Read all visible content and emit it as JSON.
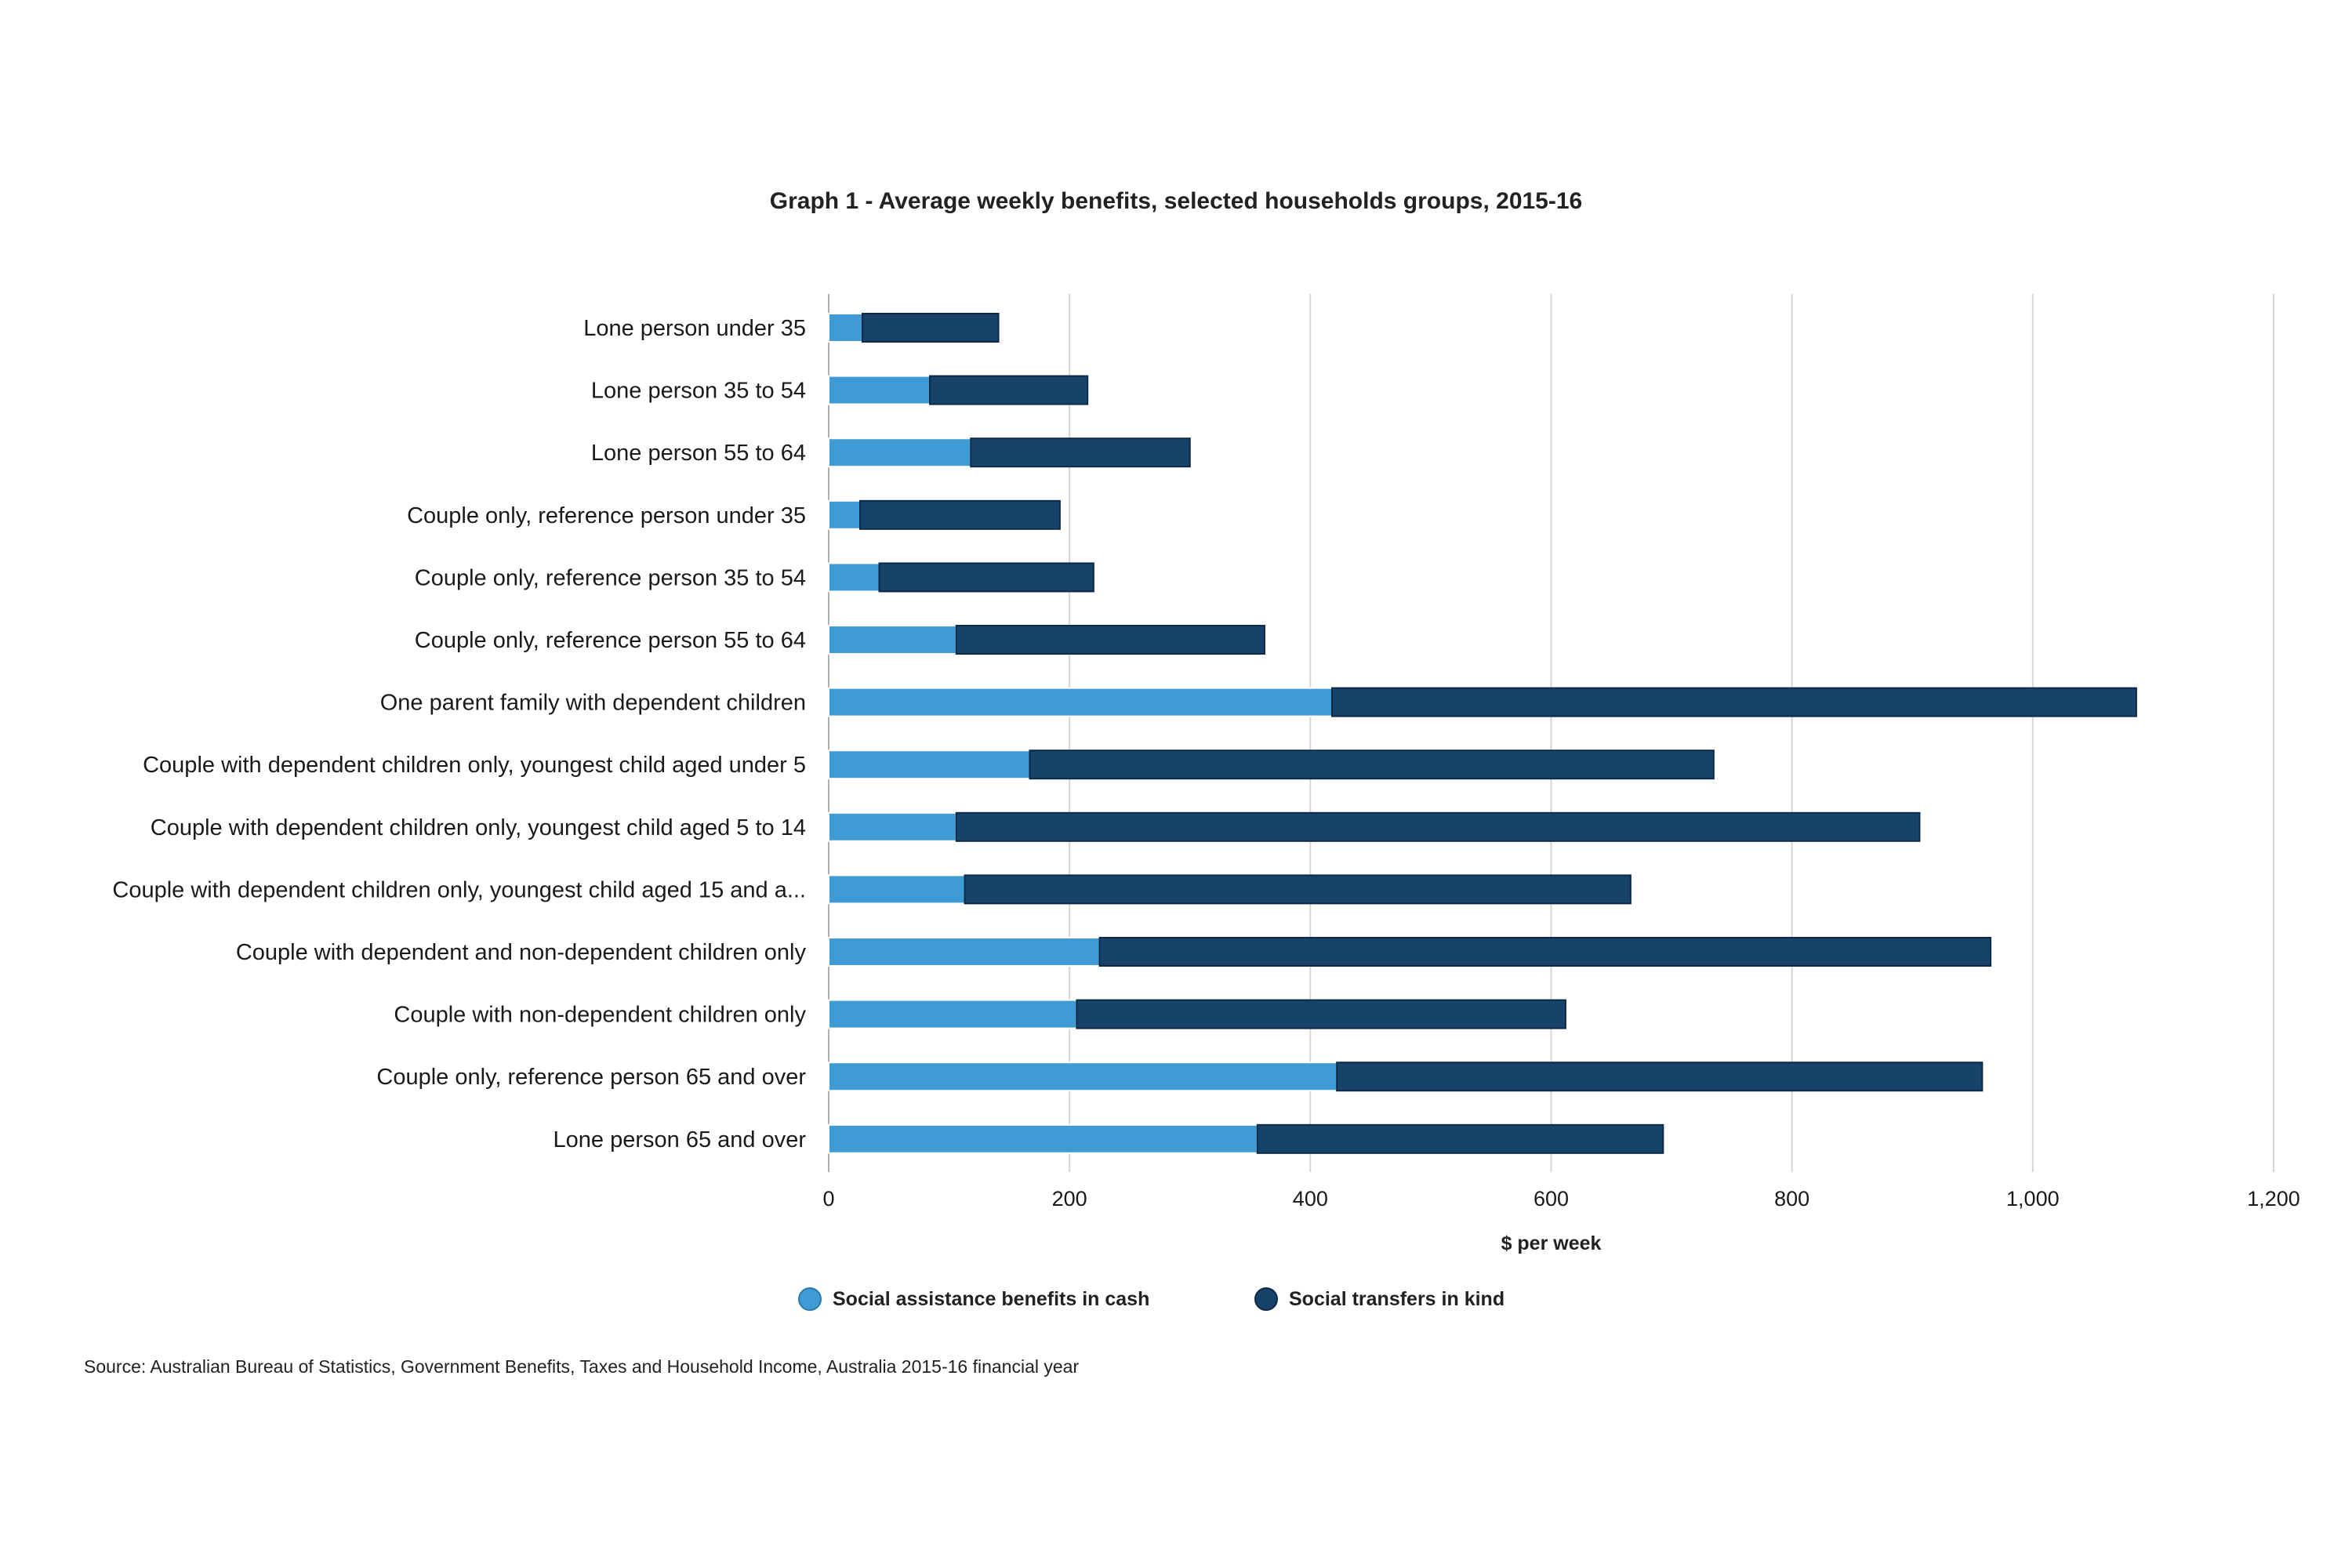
{
  "chart_data": {
    "type": "bar",
    "orientation": "horizontal",
    "stacked": true,
    "title": "Graph 1 - Average weekly benefits, selected households groups, 2015-16",
    "xlabel": "$ per week",
    "ylabel": "",
    "xlim": [
      0,
      1200
    ],
    "xticks": [
      0,
      200,
      400,
      600,
      800,
      1000,
      1200
    ],
    "xtick_labels": [
      "0",
      "200",
      "400",
      "600",
      "800",
      "1,000",
      "1,200"
    ],
    "grid": "vertical",
    "legend_position": "bottom",
    "categories": [
      "Lone person under 35",
      "Lone person 35 to 54",
      "Lone person 55 to 64",
      "Couple only, reference person under 35",
      "Couple only, reference person 35 to 54",
      "Couple only, reference person 55 to 64",
      "One parent family with dependent children",
      "Couple with dependent children only, youngest child aged under 5",
      "Couple with dependent children only, youngest child aged 5 to 14",
      "Couple with dependent children only, youngest child aged 15 and a...",
      "Couple with dependent and non-dependent children only",
      "Couple with non-dependent children only",
      "Couple only, reference person 65 and over",
      "Lone person 65 and over"
    ],
    "series": [
      {
        "name": "Social assistance benefits in cash",
        "color": "#3f9bd4",
        "values": [
          28,
          84,
          118,
          26,
          42,
          106,
          418,
          167,
          106,
          113,
          225,
          206,
          422,
          356
        ]
      },
      {
        "name": "Social transfers in kind",
        "color": "#17436b",
        "values": [
          113,
          131,
          182,
          166,
          178,
          256,
          668,
          568,
          800,
          553,
          740,
          406,
          536,
          337
        ]
      }
    ]
  },
  "source": "Source: Australian Bureau of Statistics, Government Benefits, Taxes and Household Income, Australia 2015-16 financial year"
}
